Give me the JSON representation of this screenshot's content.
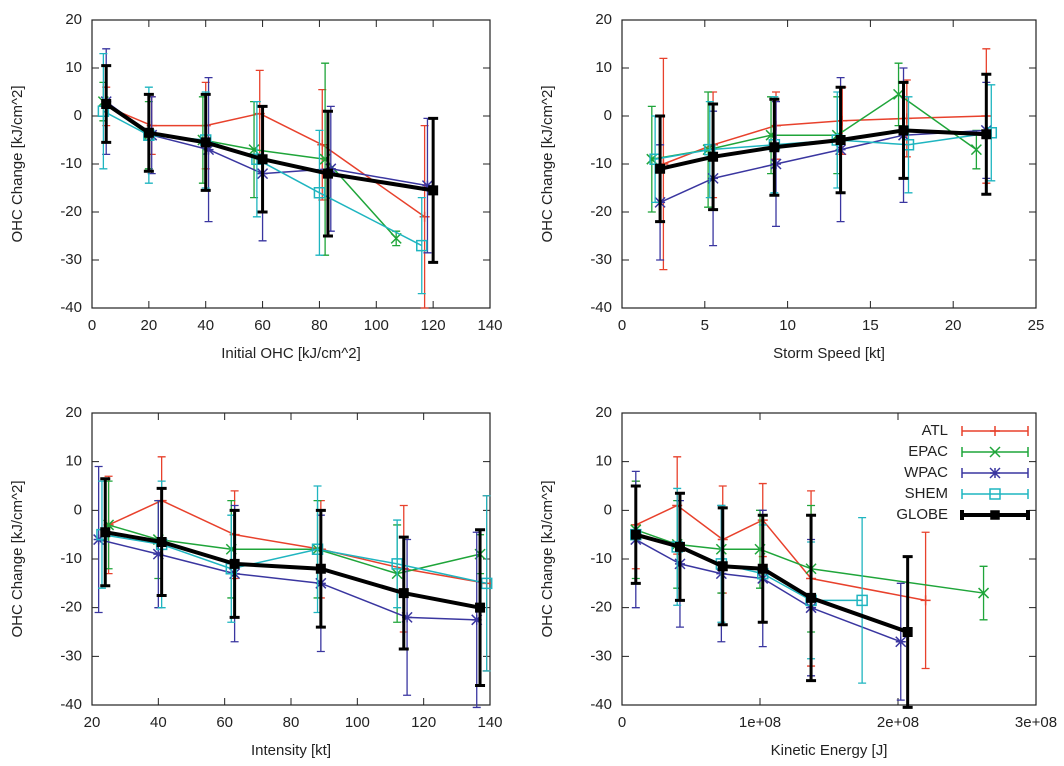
{
  "chart_data": [
    {
      "type": "line",
      "xlabel": "Initial OHC [kJ/cm^2]",
      "ylabel": "OHC Change [kJ/cm^2]",
      "xlim": [
        0,
        140
      ],
      "xticks": [
        0,
        20,
        40,
        60,
        80,
        100,
        120,
        140
      ],
      "ylim": [
        -40,
        20
      ],
      "yticks": [
        -40,
        -30,
        -20,
        -10,
        0,
        10,
        20
      ],
      "series": [
        {
          "name": "ATL",
          "color": "#e8412c",
          "marker": "plus",
          "line_width": 1.5,
          "x": [
            5,
            21,
            40,
            59,
            81,
            117
          ],
          "values": [
            2,
            -2,
            -2,
            0.5,
            -6,
            -21
          ],
          "errors": [
            4,
            6,
            9,
            9,
            11.5,
            19
          ]
        },
        {
          "name": "EPAC",
          "color": "#1fa53a",
          "marker": "x",
          "line_width": 1.5,
          "x": [
            4,
            20,
            39,
            57,
            82,
            107
          ],
          "values": [
            3,
            -4,
            -5,
            -7,
            -9,
            -25.5
          ],
          "errors": [
            4,
            7,
            9,
            10,
            20,
            1.5
          ]
        },
        {
          "name": "WPAC",
          "color": "#3a36a0",
          "marker": "star",
          "line_width": 1.5,
          "x": [
            5,
            21,
            41,
            60,
            84,
            118
          ],
          "values": [
            3,
            -4,
            -7,
            -12,
            -11,
            -14.5
          ],
          "errors": [
            11,
            8,
            15,
            14,
            13,
            14
          ]
        },
        {
          "name": "SHEM",
          "color": "#1fb5c0",
          "marker": "square",
          "line_width": 1.5,
          "x": [
            4,
            20,
            40,
            58,
            80,
            116
          ],
          "values": [
            1,
            -4,
            -5,
            -9,
            -16,
            -27
          ],
          "errors": [
            12,
            10,
            10,
            12,
            13,
            10
          ]
        },
        {
          "name": "GLOBE",
          "color": "#000000",
          "marker": "filled-square",
          "line_width": 4,
          "x": [
            5,
            20,
            40,
            60,
            83,
            120
          ],
          "values": [
            2.5,
            -3.5,
            -5.5,
            -9,
            -12,
            -15.5
          ],
          "errors": [
            8,
            8,
            10,
            11,
            13,
            15
          ]
        }
      ]
    },
    {
      "type": "line",
      "xlabel": "Storm Speed [kt]",
      "ylabel": "OHC Change [kJ/cm^2]",
      "xlim": [
        0,
        25
      ],
      "xticks": [
        0,
        5,
        10,
        15,
        20,
        25
      ],
      "ylim": [
        -40,
        20
      ],
      "yticks": [
        -40,
        -30,
        -20,
        -10,
        0,
        10,
        20
      ],
      "series": [
        {
          "name": "ATL",
          "color": "#e8412c",
          "marker": "plus",
          "line_width": 1.5,
          "x": [
            2.5,
            5.5,
            9.3,
            13.3,
            17.2,
            22
          ],
          "values": [
            -10,
            -6,
            -2,
            -1,
            -0.5,
            0
          ],
          "errors": [
            22,
            11,
            7,
            7,
            8,
            14
          ]
        },
        {
          "name": "EPAC",
          "color": "#1fa53a",
          "marker": "x",
          "line_width": 1.5,
          "x": [
            1.8,
            5.2,
            9,
            13,
            16.7,
            21.4
          ],
          "values": [
            -9,
            -7,
            -4,
            -4,
            4.5,
            -7
          ],
          "errors": [
            11,
            12,
            8,
            8,
            6.5,
            4
          ]
        },
        {
          "name": "WPAC",
          "color": "#3a36a0",
          "marker": "star",
          "line_width": 1.5,
          "x": [
            2.3,
            5.5,
            9.3,
            13.2,
            17,
            22
          ],
          "values": [
            -18,
            -13,
            -10,
            -7,
            -4,
            -3
          ],
          "errors": [
            12,
            14,
            13,
            15,
            14,
            10
          ]
        },
        {
          "name": "SHEM",
          "color": "#1fb5c0",
          "marker": "square",
          "line_width": 1.5,
          "x": [
            2,
            5.3,
            9.2,
            13,
            17.3,
            22.3
          ],
          "values": [
            -9,
            -7,
            -6,
            -5,
            -6,
            -3.5
          ],
          "errors": [
            9,
            10,
            10,
            10,
            10,
            10
          ]
        },
        {
          "name": "GLOBE",
          "color": "#000000",
          "marker": "filled-square",
          "line_width": 4,
          "x": [
            2.3,
            5.5,
            9.2,
            13.2,
            17,
            22
          ],
          "values": [
            -11,
            -8.5,
            -6.5,
            -5,
            -3,
            -3.8
          ],
          "errors": [
            11,
            11,
            10,
            11,
            10,
            12.5
          ]
        }
      ]
    },
    {
      "type": "line",
      "xlabel": "Intensity [kt]",
      "ylabel": "OHC Change [kJ/cm^2]",
      "xlim": [
        20,
        140
      ],
      "xticks": [
        20,
        40,
        60,
        80,
        100,
        120,
        140
      ],
      "ylim": [
        -40,
        20
      ],
      "yticks": [
        -40,
        -30,
        -20,
        -10,
        0,
        10,
        20
      ],
      "series": [
        {
          "name": "ATL",
          "color": "#e8412c",
          "marker": "plus",
          "line_width": 1.5,
          "x": [
            25,
            41,
            63,
            89,
            114,
            139
          ],
          "values": [
            -3,
            2,
            -5,
            -8,
            -12,
            -15
          ],
          "errors": [
            10,
            9,
            9,
            10,
            13,
            18
          ]
        },
        {
          "name": "EPAC",
          "color": "#1fa53a",
          "marker": "x",
          "line_width": 1.5,
          "x": [
            25,
            40,
            62,
            88,
            112,
            137
          ],
          "values": [
            -3,
            -6,
            -8,
            -8,
            -13,
            -9
          ],
          "errors": [
            9,
            8,
            10,
            10,
            10,
            4
          ]
        },
        {
          "name": "WPAC",
          "color": "#3a36a0",
          "marker": "star",
          "line_width": 1.5,
          "x": [
            22,
            40,
            63,
            89,
            115,
            136
          ],
          "values": [
            -6,
            -9,
            -13,
            -15,
            -22,
            -22.5
          ],
          "errors": [
            15,
            11,
            14,
            14,
            16,
            18
          ]
        },
        {
          "name": "SHEM",
          "color": "#1fb5c0",
          "marker": "square",
          "line_width": 1.5,
          "x": [
            23,
            41,
            62,
            88,
            112,
            139
          ],
          "values": [
            -5,
            -7,
            -12,
            -8,
            -11,
            -15
          ],
          "errors": [
            11,
            13,
            11,
            13,
            9,
            18
          ]
        },
        {
          "name": "GLOBE",
          "color": "#000000",
          "marker": "filled-square",
          "line_width": 4,
          "x": [
            24,
            41,
            63,
            89,
            114,
            137
          ],
          "values": [
            -4.5,
            -6.5,
            -11,
            -12,
            -17,
            -20
          ],
          "errors": [
            11,
            11,
            11,
            12,
            11.5,
            16
          ]
        }
      ]
    },
    {
      "type": "line",
      "xlabel": "Kinetic Energy [J]",
      "ylabel": "OHC Change [kJ/cm^2]",
      "xlim": [
        0,
        300000000
      ],
      "xticks": [
        0,
        {
          "value": 100000000,
          "label": "1e+08"
        },
        {
          "value": 200000000,
          "label": "2e+08"
        },
        {
          "value": 300000000,
          "label": "3e+08"
        }
      ],
      "ylim": [
        -40,
        20
      ],
      "yticks": [
        -40,
        -30,
        -20,
        -10,
        0,
        10,
        20
      ],
      "legend": "upper right",
      "series": [
        {
          "name": "ATL",
          "color": "#e8412c",
          "marker": "plus",
          "line_width": 1.5,
          "x": [
            10000000,
            40000000,
            73000000,
            102000000,
            137000000,
            220000000
          ],
          "values": [
            -3,
            1,
            -6,
            -2,
            -14,
            -18.5
          ],
          "errors": [
            9,
            10,
            11,
            7.5,
            18,
            14
          ]
        },
        {
          "name": "EPAC",
          "color": "#1fa53a",
          "marker": "x",
          "line_width": 1.5,
          "x": [
            10000000,
            40000000,
            72000000,
            100000000,
            137000000,
            262000000
          ],
          "values": [
            -4,
            -7,
            -8,
            -8,
            -12,
            -17
          ],
          "errors": [
            10,
            9,
            9,
            8,
            13,
            5.5
          ]
        },
        {
          "name": "WPAC",
          "color": "#3a36a0",
          "marker": "star",
          "line_width": 1.5,
          "x": [
            10000000,
            42000000,
            72000000,
            102000000,
            137000000,
            202000000
          ],
          "values": [
            -6,
            -11,
            -13,
            -14,
            -20,
            -27
          ],
          "errors": [
            14,
            13,
            14,
            14,
            14,
            12
          ]
        },
        {
          "name": "SHEM",
          "color": "#1fb5c0",
          "marker": "square",
          "line_width": 1.5,
          "x": [
            10000000,
            40000000,
            72000000,
            102000000,
            137000000,
            174000000
          ],
          "values": [
            -5,
            -7.5,
            -11,
            -13,
            -18.5,
            -18.5
          ],
          "errors": [
            10,
            12,
            12,
            10,
            12,
            17
          ]
        },
        {
          "name": "GLOBE",
          "color": "#000000",
          "marker": "filled-square",
          "line_width": 4,
          "x": [
            10000000,
            42000000,
            73000000,
            102000000,
            137000000,
            207000000
          ],
          "values": [
            -5,
            -7.5,
            -11.5,
            -12,
            -18,
            -25
          ],
          "errors": [
            10,
            11,
            12,
            11,
            17,
            15.5
          ]
        }
      ]
    }
  ]
}
